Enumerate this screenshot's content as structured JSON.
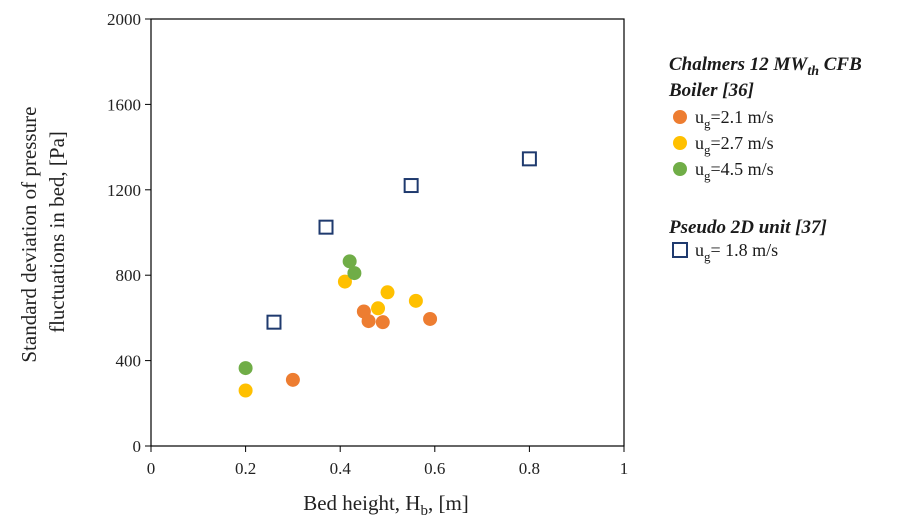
{
  "chart_data": {
    "type": "scatter",
    "xlabel": {
      "main": "Bed height, H",
      "sub": "b",
      "tail": ", [m]"
    },
    "ylabel": [
      "Standard deviation of pressure",
      "fluctuations in bed, [Pa]"
    ],
    "xlim": [
      0,
      1
    ],
    "ylim": [
      0,
      2000
    ],
    "x_ticks": [
      {
        "v": 0,
        "label": "0"
      },
      {
        "v": 0.2,
        "label": "0.2"
      },
      {
        "v": 0.4,
        "label": "0.4"
      },
      {
        "v": 0.6,
        "label": "0.6"
      },
      {
        "v": 0.8,
        "label": "0.8"
      },
      {
        "v": 1,
        "label": "1"
      }
    ],
    "y_ticks": [
      {
        "v": 0,
        "label": "0"
      },
      {
        "v": 400,
        "label": "400"
      },
      {
        "v": 800,
        "label": "800"
      },
      {
        "v": 1200,
        "label": "1200"
      },
      {
        "v": 1600,
        "label": "1600"
      },
      {
        "v": 2000,
        "label": "2000"
      }
    ],
    "grid": false,
    "legend_placement": "right",
    "legend_groups": [
      {
        "title_parts": [
          {
            "text": "Chalmers 12 MW",
            "baseline": "normal"
          },
          {
            "text": "th",
            "baseline": "sub"
          },
          {
            "text": " CFB",
            "baseline": "normal"
          }
        ],
        "title_line2": "Boiler [36]",
        "entries": [
          {
            "label": {
              "base": "u",
              "sub": "g",
              "rest": "=2.1 m/s"
            },
            "series": 0
          },
          {
            "label": {
              "base": "u",
              "sub": "g",
              "rest": "=2.7 m/s"
            },
            "series": 1
          },
          {
            "label": {
              "base": "u",
              "sub": "g",
              "rest": "=4.5 m/s"
            },
            "series": 2
          }
        ]
      },
      {
        "title_parts": [
          {
            "text": "Pseudo 2D unit [37]",
            "baseline": "normal"
          }
        ],
        "title_line2": "",
        "entries": [
          {
            "label": {
              "base": "u",
              "sub": "g",
              "rest": "= 1.8 m/s"
            },
            "series": 3
          }
        ]
      }
    ],
    "series": [
      {
        "marker": "circle",
        "color": "#ed7d31",
        "points": [
          [
            0.3,
            310
          ],
          [
            0.45,
            630
          ],
          [
            0.46,
            585
          ],
          [
            0.49,
            580
          ],
          [
            0.59,
            595
          ]
        ]
      },
      {
        "marker": "circle",
        "color": "#ffc000",
        "points": [
          [
            0.2,
            260
          ],
          [
            0.41,
            770
          ],
          [
            0.48,
            645
          ],
          [
            0.5,
            720
          ],
          [
            0.56,
            680
          ]
        ]
      },
      {
        "marker": "circle",
        "color": "#70ad47",
        "points": [
          [
            0.2,
            365
          ],
          [
            0.42,
            865
          ],
          [
            0.43,
            810
          ]
        ]
      },
      {
        "marker": "square-open",
        "color": "#1f3a6e",
        "points": [
          [
            0.26,
            580
          ],
          [
            0.37,
            1025
          ],
          [
            0.55,
            1220
          ],
          [
            0.8,
            1345
          ]
        ]
      }
    ]
  }
}
